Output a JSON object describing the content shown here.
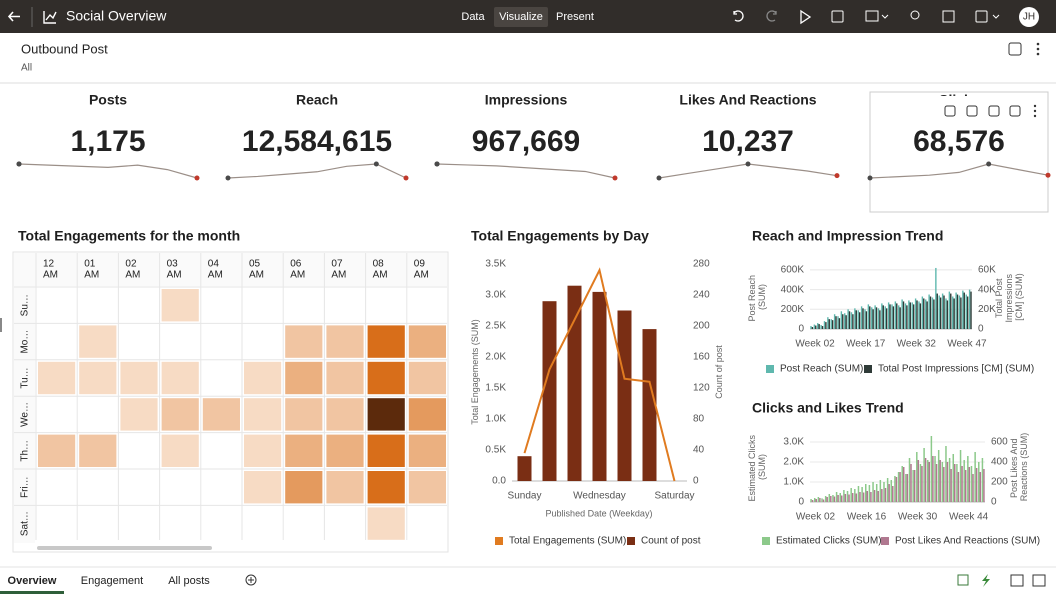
{
  "header": {
    "title": "Social Overview",
    "tabs": [
      "Data",
      "Visualize",
      "Present"
    ],
    "user": "JH"
  },
  "filter": {
    "title": "Outbound Post",
    "value": "All"
  },
  "kpis": [
    {
      "label": "Posts",
      "value": "1,175",
      "sparkline": [
        120,
        118,
        116,
        114,
        118,
        110,
        95
      ]
    },
    {
      "label": "Reach",
      "value": "12,584,615",
      "sparkline": [
        70,
        72,
        75,
        78,
        85,
        88,
        70
      ]
    },
    {
      "label": "Impressions",
      "value": "967,669",
      "sparkline": [
        80,
        79,
        78,
        76,
        74,
        72,
        65
      ]
    },
    {
      "label": "Likes And Reactions",
      "value": "10,237",
      "sparkline": [
        60,
        64,
        68,
        72,
        69,
        66,
        62
      ]
    },
    {
      "label": "Clicks",
      "value": "68,576",
      "sparkline": [
        60,
        61,
        62,
        64,
        70,
        66,
        62
      ]
    }
  ],
  "chart_data": [
    {
      "type": "heatmap",
      "title": "Total Engagements for the month",
      "x": [
        "12 AM",
        "01 AM",
        "02 AM",
        "03 AM",
        "04 AM",
        "05 AM",
        "06 AM",
        "07 AM",
        "08 AM",
        "09 AM"
      ],
      "y": [
        "Su…",
        "Mo…",
        "Tu…",
        "We…",
        "Th…",
        "Fri…",
        "Sat…"
      ],
      "values": [
        [
          null,
          null,
          null,
          2,
          null,
          null,
          null,
          null,
          null,
          null
        ],
        [
          null,
          2,
          null,
          null,
          null,
          null,
          3,
          3,
          7,
          4
        ],
        [
          2,
          2,
          2,
          2,
          null,
          2,
          4,
          3,
          7,
          3
        ],
        [
          null,
          null,
          2,
          3,
          3,
          2,
          3,
          3,
          10,
          5
        ],
        [
          3,
          3,
          null,
          2,
          null,
          2,
          4,
          4,
          7,
          4
        ],
        [
          null,
          null,
          null,
          null,
          null,
          2,
          5,
          3,
          7,
          3
        ],
        [
          null,
          null,
          null,
          null,
          null,
          null,
          null,
          null,
          2,
          null
        ]
      ],
      "color": "#d86e1a"
    },
    {
      "type": "combo",
      "title": "Total Engagements by Day",
      "x_label": "Published Date (Weekday)",
      "y_label": "Total Engagements (SUM)",
      "y2_label": "Count of post",
      "categories": [
        "Sunday",
        null,
        null,
        "Wednesday",
        null,
        null,
        "Saturday"
      ],
      "series": [
        {
          "name": "Total Engagements (SUM)",
          "color": "#e07b20",
          "mark": "line",
          "values": [
            450,
            1800,
            2600,
            3400,
            1650,
            1600,
            0
          ]
        },
        {
          "name": "Count of post",
          "color": "#7a2e14",
          "mark": "bar",
          "axis": "y2",
          "values": [
            32,
            232,
            252,
            244,
            220,
            196,
            null
          ]
        }
      ],
      "ylim": [
        0,
        3500
      ],
      "yticks": [
        {
          "value": 0,
          "label": "0.0"
        },
        {
          "value": 500,
          "label": "0.5K"
        },
        {
          "value": 1000,
          "label": "1.0K"
        },
        {
          "value": 1500,
          "label": "1.5K"
        },
        {
          "value": 2000,
          "label": "2.0K"
        },
        {
          "value": 2500,
          "label": "2.5K"
        },
        {
          "value": 3000,
          "label": "3.0K"
        },
        {
          "value": 3500,
          "label": "3.5K"
        }
      ],
      "y2lim": [
        0,
        280
      ],
      "y2ticks": [
        0,
        40,
        80,
        120,
        160,
        200,
        240,
        280
      ],
      "grid": false
    },
    {
      "type": "combo",
      "title": "Reach and Impression Trend",
      "y_label": "Post Reach (SUM)",
      "y2_label": "Total Post Impressions [CM] (SUM)",
      "categories": [
        null,
        "Week 02",
        null,
        null,
        null,
        null,
        null,
        null,
        null,
        null,
        null,
        null,
        null,
        null,
        null,
        null,
        "Week 17",
        null,
        null,
        null,
        null,
        null,
        null,
        null,
        null,
        null,
        null,
        null,
        null,
        null,
        null,
        "Week 32",
        null,
        null,
        null,
        null,
        null,
        null,
        null,
        null,
        null,
        null,
        null,
        null,
        null,
        null,
        "Week 47",
        null
      ],
      "series": [
        {
          "name": "Post Reach (SUM)",
          "color": "#5fb8ae",
          "mark": "bar",
          "values": [
            30000,
            45000,
            60000,
            40000,
            80000,
            120000,
            100000,
            150000,
            130000,
            180000,
            160000,
            200000,
            170000,
            210000,
            190000,
            230000,
            200000,
            250000,
            220000,
            240000,
            210000,
            260000,
            230000,
            270000,
            250000,
            280000,
            240000,
            300000,
            260000,
            290000,
            270000,
            310000,
            280000,
            330000,
            300000,
            350000,
            320000,
            620000,
            340000,
            360000,
            310000,
            380000,
            330000,
            370000,
            340000,
            390000,
            350000,
            400000
          ]
        },
        {
          "name": "Total Post Impressions [CM] (SUM)",
          "color": "#2f3b38",
          "mark": "bar",
          "axis": "y2",
          "values": [
            2000,
            3500,
            5000,
            3000,
            7000,
            10000,
            9000,
            13000,
            11000,
            15000,
            14000,
            18000,
            15000,
            19000,
            17000,
            21000,
            18000,
            23000,
            20000,
            22000,
            19000,
            24000,
            21000,
            25000,
            23000,
            26000,
            22000,
            28000,
            24000,
            27000,
            25000,
            29000,
            26000,
            31000,
            28000,
            33000,
            30000,
            36000,
            32000,
            34000,
            29000,
            36000,
            31000,
            35000,
            32000,
            37000,
            33000,
            38000
          ]
        }
      ],
      "ylim": [
        0,
        650000
      ],
      "yticks": [
        0,
        {
          "value": 200000,
          "label": "200K"
        },
        {
          "value": 400000,
          "label": "400K"
        },
        {
          "value": 600000,
          "label": "600K"
        }
      ],
      "y2lim": [
        0,
        65000
      ],
      "y2ticks": [
        0,
        {
          "value": 20000,
          "label": "20K"
        },
        {
          "value": 40000,
          "label": "40K"
        },
        {
          "value": 60000,
          "label": "60K"
        }
      ],
      "grid": true
    },
    {
      "type": "combo",
      "title": "Clicks and Likes Trend",
      "y_label": "Estimated Clicks (SUM)",
      "y2_label": "Post Likes And Reactions (SUM)",
      "categories": [
        null,
        "Week 02",
        null,
        null,
        null,
        null,
        null,
        null,
        null,
        null,
        null,
        null,
        null,
        null,
        null,
        "Week 16",
        null,
        null,
        null,
        null,
        null,
        null,
        null,
        null,
        null,
        null,
        null,
        null,
        null,
        "Week 30",
        null,
        null,
        null,
        null,
        null,
        null,
        null,
        null,
        null,
        null,
        null,
        null,
        null,
        "Week 44",
        null,
        null,
        null,
        null
      ],
      "series": [
        {
          "name": "Estimated Clicks (SUM)",
          "color": "#8cc98a",
          "mark": "bar",
          "values": [
            150,
            200,
            250,
            180,
            300,
            400,
            350,
            500,
            450,
            600,
            550,
            700,
            650,
            800,
            750,
            900,
            850,
            1000,
            900,
            1100,
            1000,
            1200,
            1100,
            1300,
            1500,
            1800,
            1400,
            2200,
            1600,
            2500,
            1900,
            2700,
            2100,
            3300,
            2300,
            2600,
            2000,
            2800,
            2200,
            2400,
            1900,
            2600,
            2100,
            2300,
            1800,
            2500,
            2000,
            2200
          ]
        },
        {
          "name": "Post Likes And Reactions (SUM)",
          "color": "#b07890",
          "mark": "bar",
          "axis": "y2",
          "values": [
            20,
            30,
            40,
            25,
            50,
            60,
            55,
            70,
            65,
            80,
            75,
            90,
            85,
            100,
            95,
            110,
            100,
            120,
            110,
            130,
            140,
            180,
            160,
            250,
            300,
            350,
            280,
            380,
            320,
            420,
            360,
            440,
            400,
            460,
            380,
            420,
            350,
            400,
            330,
            380,
            300,
            360,
            320,
            350,
            280,
            340,
            300,
            330
          ]
        }
      ],
      "ylim": [
        0,
        3500
      ],
      "yticks": [
        0,
        {
          "value": 1000,
          "label": "1.0K"
        },
        {
          "value": 2000,
          "label": "2.0K"
        },
        {
          "value": 3000,
          "label": "3.0K"
        }
      ],
      "y2lim": [
        0,
        700
      ],
      "y2ticks": [
        0,
        200,
        400,
        600
      ],
      "grid": true
    }
  ],
  "bottom_tabs": [
    "Overview",
    "Engagement",
    "All posts"
  ]
}
